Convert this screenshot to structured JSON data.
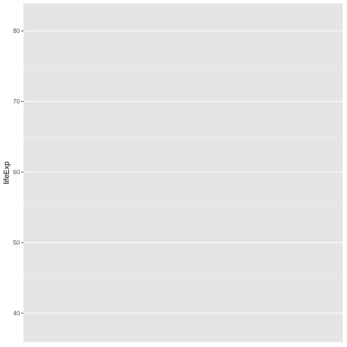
{
  "chart_data": {
    "type": "scatter",
    "title": "",
    "xlabel": "",
    "ylabel": "lifeExp",
    "ylim": [
      35.9,
      83.9
    ],
    "yticks": [
      40,
      50,
      60,
      70,
      80
    ],
    "ytick_labels": [
      "40",
      "50",
      "60",
      "70",
      "80"
    ],
    "grid": true,
    "series": []
  },
  "colors": {
    "panel_background": "#e5e5e5",
    "grid_major": "#ffffff",
    "grid_minor": "#f2f2f2",
    "tick_label": "#4d4d4d",
    "axis_title": "#000000"
  }
}
